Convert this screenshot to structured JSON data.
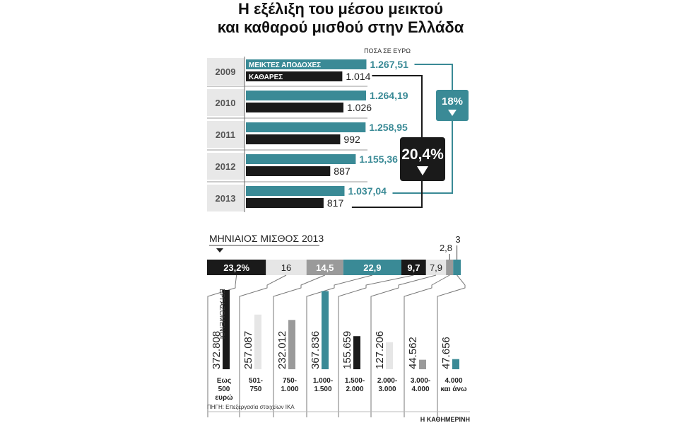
{
  "title_line1": "Η εξέλιξη του μέσου μεικτού",
  "title_line2": "και καθαρού μισθού στην Ελλάδα",
  "chart_data": [
    {
      "type": "bar",
      "unit_note": "ΠΟΣΑ ΣΕ ΕΥΡΩ",
      "categories": [
        "2009",
        "2010",
        "2011",
        "2012",
        "2013"
      ],
      "series": [
        {
          "name": "ΜΕΙΚΤΕΣ ΑΠΟΔΟΧΕΣ",
          "values": [
            1267.51,
            1264.19,
            1258.95,
            1155.36,
            1037.04
          ],
          "labels": [
            "1.267,51",
            "1.264,19",
            "1.258,95",
            "1.155,36",
            "1.037,04"
          ],
          "color": "#3a8a96"
        },
        {
          "name": "ΚΑΘΑΡΕΣ",
          "values": [
            1014,
            1026,
            992,
            887,
            817
          ],
          "labels": [
            "1.014",
            "1.026",
            "992",
            "887",
            "817"
          ],
          "color": "#1a1a1a"
        }
      ],
      "annotations": [
        {
          "text": "18%",
          "note": "decrease of gross"
        },
        {
          "text": "20,4%",
          "note": "decrease of net"
        }
      ]
    },
    {
      "type": "bar",
      "title": "ΜΗΝΙΑΙΟΣ ΜΙΣΘΟΣ 2013",
      "ylabel": "ΕΡΓΑΖΟΜΕΝΟΙ",
      "categories": [
        "Εως 500 ευρώ",
        "501-750",
        "750-1.000",
        "1.000-1.500",
        "1.500-2.000",
        "2.000-3.000",
        "3.000-4.000",
        "4.000 και άνω"
      ],
      "category_lines": [
        [
          "Εως",
          "500",
          "ευρώ"
        ],
        [
          "501-",
          "750"
        ],
        [
          "750-",
          "1.000"
        ],
        [
          "1.000-",
          "1.500"
        ],
        [
          "1.500-",
          "2.000"
        ],
        [
          "2.000-",
          "3.000"
        ],
        [
          "3.000-",
          "4.000"
        ],
        [
          "4.000",
          "και άνω"
        ]
      ],
      "values": [
        372808,
        257087,
        232012,
        367836,
        155659,
        127206,
        44562,
        47656
      ],
      "value_labels": [
        "372.808",
        "257.087",
        "232.012",
        "367.836",
        "155.659",
        "127.206",
        "44.562",
        "47.656"
      ],
      "percent": [
        23.2,
        16,
        14.5,
        22.9,
        9.7,
        7.9,
        2.8,
        3
      ],
      "percent_labels": [
        "23,2%",
        "16",
        "14,5",
        "22,9",
        "9,7",
        "7,9",
        "2,8",
        "3"
      ],
      "colors": [
        "#1a1a1a",
        "#e6e6e6",
        "#9a9a9a",
        "#3a8a96",
        "#1a1a1a",
        "#e6e6e6",
        "#9a9a9a",
        "#3a8a96"
      ]
    }
  ],
  "source": "ΠΗΓΗ: Επεξεργασία στοιχείων ΙΚΑ",
  "credit": "Η ΚΑΘΗΜΕΡΙΝΗ"
}
